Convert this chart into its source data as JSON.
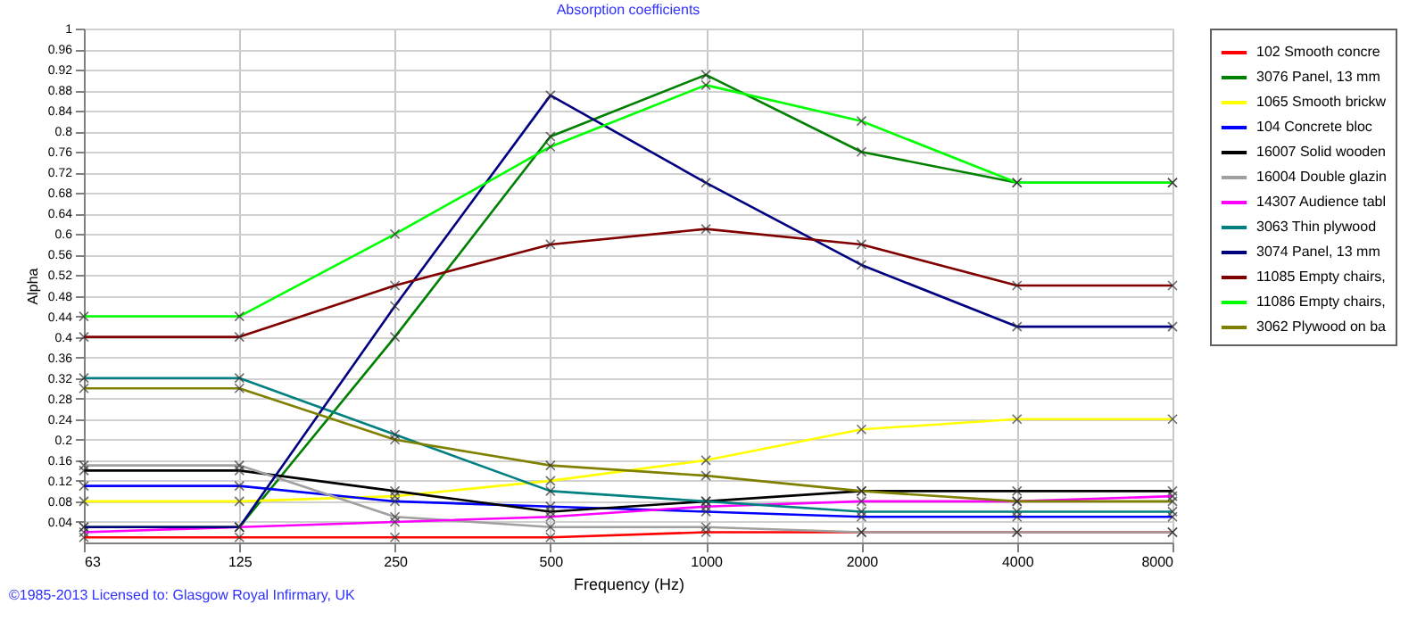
{
  "chart_data": {
    "type": "line",
    "title": "Absorption coefficients",
    "xlabel": "Frequency (Hz)",
    "ylabel": "Alpha",
    "annotations": [
      "©1985-2013  Licensed to: Glasgow Royal Infirmary, UK"
    ],
    "categories": [
      "63",
      "125",
      "250",
      "500",
      "1000",
      "2000",
      "4000",
      "8000"
    ],
    "ylim": [
      0,
      1
    ],
    "yticks": [
      0.04,
      0.08,
      0.12,
      0.16,
      0.2,
      0.24,
      0.28,
      0.32,
      0.36,
      0.4,
      0.44,
      0.48,
      0.52,
      0.56,
      0.6,
      0.64,
      0.68,
      0.72,
      0.76,
      0.8,
      0.84,
      0.88,
      0.92,
      0.96,
      1
    ],
    "grid": true,
    "legend": "right",
    "marker": "cross",
    "line_style": "solid",
    "series": [
      {
        "name": "102 Smooth concre",
        "color": "#ff0000",
        "values": [
          0.01,
          0.01,
          0.01,
          0.01,
          0.02,
          0.02,
          0.02,
          0.02
        ]
      },
      {
        "name": "3076 Panel, 13 mm",
        "color": "#008000",
        "values": [
          0.03,
          0.03,
          0.4,
          0.79,
          0.91,
          0.76,
          0.7,
          0.7
        ]
      },
      {
        "name": "1065 Smooth brickw",
        "color": "#ffff00",
        "values": [
          0.08,
          0.08,
          0.09,
          0.12,
          0.16,
          0.22,
          0.24,
          0.24
        ]
      },
      {
        "name": "104 Concrete bloc",
        "color": "#0000ff",
        "values": [
          0.11,
          0.11,
          0.08,
          0.07,
          0.06,
          0.05,
          0.05,
          0.05
        ]
      },
      {
        "name": "16007 Solid wooden",
        "color": "#000000",
        "values": [
          0.14,
          0.14,
          0.1,
          0.06,
          0.08,
          0.1,
          0.1,
          0.1
        ]
      },
      {
        "name": "16004 Double glazin",
        "color": "#a0a0a0",
        "values": [
          0.15,
          0.15,
          0.05,
          0.03,
          0.03,
          0.02,
          0.02,
          0.02
        ]
      },
      {
        "name": "14307 Audience tabl",
        "color": "#ff00ff",
        "values": [
          0.02,
          0.03,
          0.04,
          0.05,
          0.07,
          0.08,
          0.08,
          0.09
        ]
      },
      {
        "name": "3063 Thin plywood",
        "color": "#008080",
        "values": [
          0.32,
          0.32,
          0.21,
          0.1,
          0.08,
          0.06,
          0.06,
          0.06
        ]
      },
      {
        "name": "3074 Panel, 13 mm",
        "color": "#000080",
        "values": [
          0.03,
          0.03,
          0.46,
          0.87,
          0.7,
          0.54,
          0.42,
          0.42
        ]
      },
      {
        "name": "11085 Empty chairs,",
        "color": "#800000",
        "values": [
          0.4,
          0.4,
          0.5,
          0.58,
          0.61,
          0.58,
          0.5,
          0.5
        ]
      },
      {
        "name": "11086 Empty chairs,",
        "color": "#00ff00",
        "values": [
          0.44,
          0.44,
          0.6,
          0.77,
          0.89,
          0.82,
          0.7,
          0.7
        ]
      },
      {
        "name": "3062 Plywood on ba",
        "color": "#808000",
        "values": [
          0.3,
          0.3,
          0.2,
          0.15,
          0.13,
          0.1,
          0.08,
          0.08
        ]
      }
    ]
  }
}
